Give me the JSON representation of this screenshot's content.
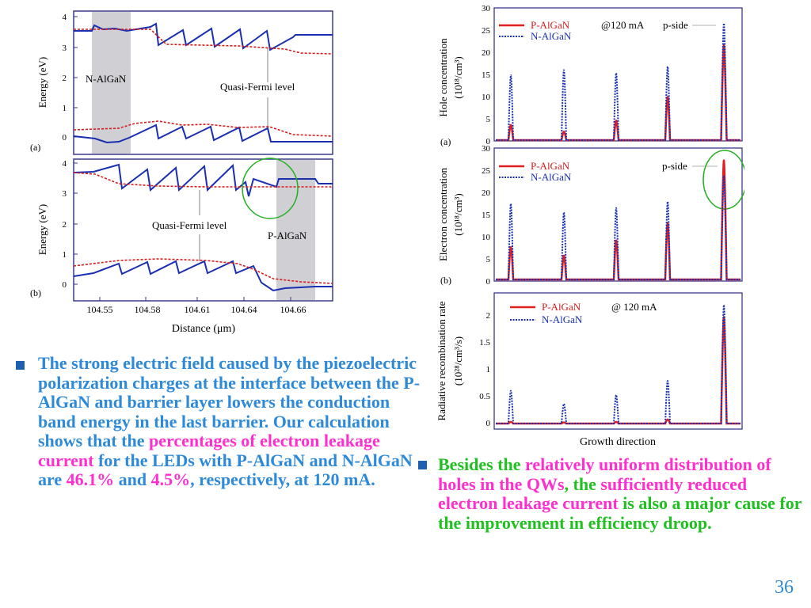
{
  "figure_left": {
    "panel_a": {
      "label": "(a)",
      "y_ticks": [
        "0",
        "1",
        "2",
        "3",
        "4"
      ],
      "ylabel": "Energy (eV)",
      "region_label": "N-AlGaN",
      "annotation": "Quasi-Fermi level"
    },
    "panel_b": {
      "label": "(b)",
      "y_ticks": [
        "0",
        "1",
        "2",
        "3",
        "4"
      ],
      "ylabel": "Energy (eV)",
      "region_label": "P-AlGaN",
      "annotation": "Quasi-Fermi level"
    },
    "x_ticks": [
      "104.55",
      "104.58",
      "104.61",
      "104.64",
      "104.66"
    ],
    "xlabel": "Distance (μm)"
  },
  "figure_right": {
    "panel_a": {
      "label": "(a)",
      "ylabel_line1": "Hole concentration",
      "ylabel_line2": "(10¹⁸/cm³)",
      "y_ticks": [
        "0",
        "5",
        "10",
        "15",
        "20",
        "25",
        "30"
      ],
      "legend": [
        "P-AlGaN",
        "N-AlGaN"
      ],
      "condition": "@120 mA",
      "annotation": "p-side"
    },
    "panel_b": {
      "label": "(b)",
      "ylabel_line1": "Electron concentration",
      "ylabel_line2": "(10¹⁸/cm³)",
      "y_ticks": [
        "0",
        "5",
        "10",
        "15",
        "20",
        "25",
        "30"
      ],
      "legend": [
        "P-AlGaN",
        "N-AlGaN"
      ],
      "annotation": "p-side"
    },
    "panel_c": {
      "ylabel_line1": "Radiative recombination rate",
      "ylabel_line2": "(10²⁸/cm³/s)",
      "y_ticks": [
        "0",
        "0.5",
        "1",
        "1.5",
        "2"
      ],
      "legend": [
        "P-AlGaN",
        "N-AlGaN"
      ],
      "condition": "@ 120 mA"
    },
    "xlabel": "Growth direction"
  },
  "chart_data": [
    {
      "type": "line",
      "ylabel": "Hole concentration (10^18/cm^3)",
      "ylim": [
        0,
        30
      ],
      "series": [
        {
          "name": "P-AlGaN",
          "color": "#e02020",
          "peaks": [
            3.5,
            2,
            4.5,
            10,
            22
          ]
        },
        {
          "name": "N-AlGaN",
          "color": "#1a2fb0",
          "peaks": [
            15,
            16.2,
            15.5,
            17,
            27
          ]
        }
      ]
    },
    {
      "type": "line",
      "ylabel": "Electron concentration (10^18/cm^3)",
      "ylim": [
        0,
        30
      ],
      "series": [
        {
          "name": "P-AlGaN",
          "color": "#e02020",
          "peaks": [
            7.5,
            5.5,
            9,
            13,
            27.5
          ]
        },
        {
          "name": "N-AlGaN",
          "color": "#1a2fb0",
          "peaks": [
            17.5,
            15.5,
            16.5,
            18,
            24
          ]
        }
      ]
    },
    {
      "type": "line",
      "ylabel": "Radiative recombination rate (10^28/cm^3/s)",
      "ylim": [
        0,
        2.3
      ],
      "series": [
        {
          "name": "P-AlGaN",
          "color": "#e02020",
          "peaks": [
            0.03,
            0.02,
            0.03,
            0.08,
            2.05
          ]
        },
        {
          "name": "N-AlGaN",
          "color": "#1a2fb0",
          "peaks": [
            0.63,
            0.38,
            0.55,
            0.82,
            2.28
          ]
        }
      ]
    }
  ],
  "bullet1": {
    "part1": "The strong electric field caused by the piezoelectric polarization charges at the interface between the P-AlGaN and barrier layer lowers the conduction band energy in the last barrier. Our calculation shows that the ",
    "part2": "percentages of electron leakage current",
    "part3": " for the LEDs with P-AlGaN and N-AlGaN are ",
    "part4": "46.1%",
    "part5": " and ",
    "part6": "4.5%",
    "part7": ", respectively, at 120 mA."
  },
  "bullet2": {
    "part1": "Besides the ",
    "part2": "relatively uniform distribution of holes in the QWs",
    "part3": ", the ",
    "part4": "sufficiently reduced electron leakage current",
    "part5": " is also a major cause for the improvement in efficiency droop."
  },
  "page_number": "36"
}
